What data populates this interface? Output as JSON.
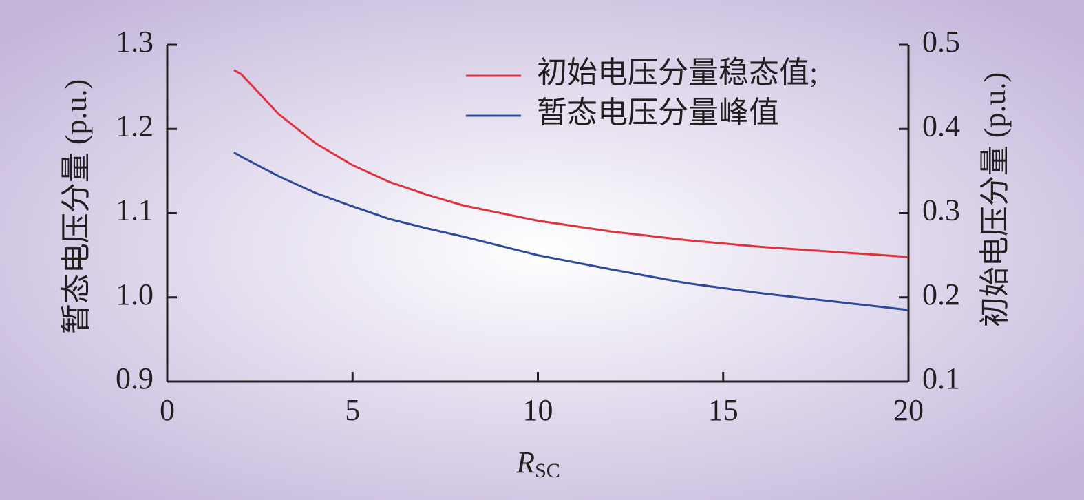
{
  "chart_data": {
    "type": "line",
    "xlabel": {
      "main": "R",
      "sub": "SC"
    },
    "ylabel": "暂态电压分量 (p.u.)",
    "y2label": "初始电压分量 (p.u.)",
    "x": [
      1.8,
      2,
      3,
      4,
      5,
      6,
      7,
      8,
      10,
      12,
      14,
      16,
      18,
      20
    ],
    "series": [
      {
        "name": "初始电压分量稳态值;",
        "color": "#e0323c",
        "axis": "y2",
        "values": [
          0.47,
          0.465,
          0.418,
          0.383,
          0.357,
          0.337,
          0.322,
          0.309,
          0.291,
          0.278,
          0.268,
          0.26,
          0.254,
          0.248
        ]
      },
      {
        "name": "暂态电压分量峰值",
        "color": "#2e4a9e",
        "values": [
          1.172,
          1.167,
          1.144,
          1.124,
          1.108,
          1.093,
          1.082,
          1.072,
          1.05,
          1.033,
          1.017,
          1.005,
          0.995,
          0.985
        ]
      }
    ],
    "xlim": [
      0,
      20
    ],
    "xticks": [
      0,
      5,
      10,
      15,
      20
    ],
    "ylim": [
      0.9,
      1.3
    ],
    "yticks": [
      {
        "value": 0.9,
        "label": "0.9"
      },
      {
        "value": 1,
        "label": "1.0"
      },
      1.1,
      1.2,
      1.3
    ],
    "y2lim": [
      0.1,
      0.5
    ],
    "y2ticks": [
      0.1,
      0.2,
      0.3,
      0.4,
      0.5
    ],
    "legend": "upper right"
  }
}
